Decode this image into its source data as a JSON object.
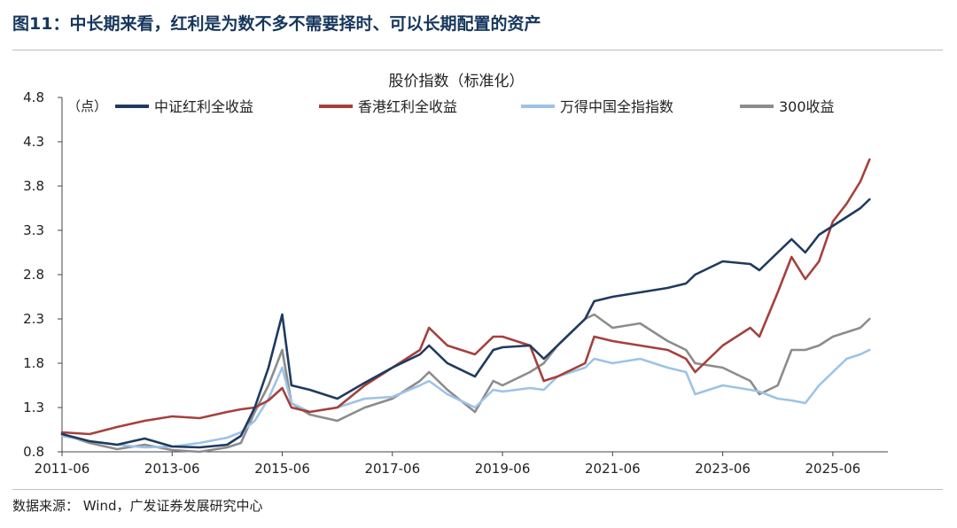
{
  "figure": {
    "title": "图11：中长期来看，红利是为数不多不需要择时、可以长期配置的资产",
    "source": "数据来源：  Wind，广发证券发展研究中心"
  },
  "chart_data": {
    "type": "line",
    "title": "股价指数（标准化）",
    "ylabel": "（点）",
    "xlabel": "",
    "ylim": [
      0.8,
      4.8
    ],
    "yticks": [
      "4.8",
      "4.3",
      "3.8",
      "3.3",
      "2.8",
      "2.3",
      "1.8",
      "1.3",
      "0.8"
    ],
    "x_range": [
      "2011-06",
      "2026-06"
    ],
    "xticks": [
      "2011-06",
      "2013-06",
      "2015-06",
      "2017-06",
      "2019-06",
      "2021-06",
      "2023-06",
      "2025-06"
    ],
    "grid": false,
    "legend": "top",
    "x": [
      "2011-06",
      "2011-12",
      "2012-06",
      "2012-12",
      "2013-06",
      "2013-12",
      "2014-06",
      "2014-09",
      "2014-12",
      "2015-03",
      "2015-06",
      "2015-08",
      "2015-12",
      "2016-06",
      "2016-12",
      "2017-06",
      "2017-12",
      "2018-02",
      "2018-06",
      "2018-12",
      "2019-04",
      "2019-06",
      "2019-12",
      "2020-03",
      "2020-06",
      "2020-12",
      "2021-02",
      "2021-06",
      "2021-12",
      "2022-06",
      "2022-10",
      "2022-12",
      "2023-06",
      "2023-12",
      "2024-02",
      "2024-06",
      "2024-09",
      "2024-12",
      "2025-03",
      "2025-06",
      "2025-09",
      "2025-12",
      "2026-02"
    ],
    "series": [
      {
        "name": "中证红利全收益",
        "color": "#1f3a5f",
        "values": [
          1.0,
          0.92,
          0.88,
          0.95,
          0.86,
          0.85,
          0.88,
          0.98,
          1.3,
          1.75,
          2.35,
          1.55,
          1.5,
          1.4,
          1.58,
          1.75,
          1.9,
          2.0,
          1.8,
          1.65,
          1.95,
          1.98,
          2.0,
          1.85,
          2.0,
          2.3,
          2.5,
          2.55,
          2.6,
          2.65,
          2.7,
          2.8,
          2.95,
          2.92,
          2.85,
          3.05,
          3.2,
          3.05,
          3.25,
          3.35,
          3.45,
          3.55,
          3.65
        ]
      },
      {
        "name": "香港红利全收益",
        "color": "#a5403c",
        "values": [
          1.02,
          1.0,
          1.08,
          1.15,
          1.2,
          1.18,
          1.25,
          1.28,
          1.3,
          1.38,
          1.52,
          1.3,
          1.25,
          1.3,
          1.55,
          1.75,
          1.95,
          2.2,
          2.0,
          1.9,
          2.1,
          2.1,
          2.0,
          1.6,
          1.65,
          1.8,
          2.1,
          2.05,
          2.0,
          1.95,
          1.85,
          1.7,
          2.0,
          2.2,
          2.1,
          2.6,
          3.0,
          2.75,
          2.95,
          3.4,
          3.6,
          3.85,
          4.1
        ]
      },
      {
        "name": "万得中国全指指数",
        "color": "#9dc3e6",
        "values": [
          0.98,
          0.92,
          0.88,
          0.85,
          0.86,
          0.9,
          0.96,
          1.02,
          1.15,
          1.4,
          1.75,
          1.35,
          1.25,
          1.3,
          1.4,
          1.42,
          1.55,
          1.6,
          1.45,
          1.3,
          1.5,
          1.48,
          1.52,
          1.5,
          1.65,
          1.75,
          1.85,
          1.8,
          1.85,
          1.75,
          1.7,
          1.45,
          1.55,
          1.5,
          1.48,
          1.4,
          1.38,
          1.35,
          1.55,
          1.7,
          1.85,
          1.9,
          1.95
        ]
      },
      {
        "name": "300收益",
        "color": "#8c8c8c",
        "values": [
          1.0,
          0.9,
          0.83,
          0.88,
          0.82,
          0.8,
          0.85,
          0.9,
          1.25,
          1.55,
          1.95,
          1.35,
          1.22,
          1.15,
          1.3,
          1.4,
          1.6,
          1.7,
          1.5,
          1.25,
          1.6,
          1.55,
          1.7,
          1.8,
          2.0,
          2.3,
          2.35,
          2.2,
          2.25,
          2.05,
          1.95,
          1.8,
          1.75,
          1.6,
          1.45,
          1.55,
          1.95,
          1.95,
          2.0,
          2.1,
          2.15,
          2.2,
          2.3
        ]
      }
    ]
  }
}
